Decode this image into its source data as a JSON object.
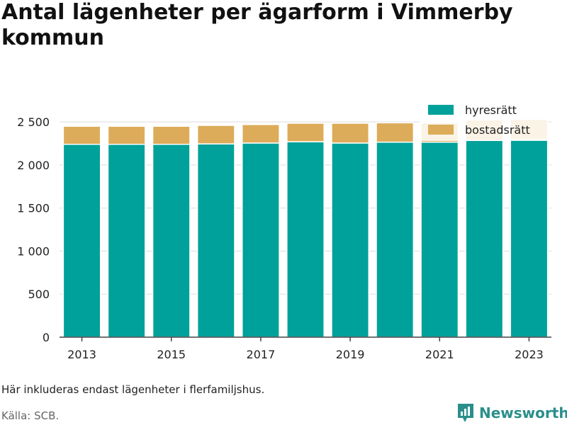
{
  "chart_data": {
    "type": "bar",
    "stacked": true,
    "title": "Antal lägenheter per ägarform i Vimmerby kommun",
    "categories": [
      2013,
      2014,
      2015,
      2016,
      2017,
      2018,
      2019,
      2020,
      2021,
      2022,
      2023
    ],
    "x_tick_labels": [
      "2013",
      "2015",
      "2017",
      "2019",
      "2021",
      "2023"
    ],
    "series": [
      {
        "name": "hyresrätt",
        "color": "#00a19a",
        "values": [
          2240,
          2240,
          2240,
          2245,
          2255,
          2270,
          2255,
          2265,
          2265,
          2285,
          2295
        ]
      },
      {
        "name": "bostadsrätt",
        "color": "#dcac5a",
        "values": [
          210,
          210,
          210,
          215,
          215,
          215,
          230,
          225,
          225,
          240,
          235
        ]
      }
    ],
    "ylim": [
      0,
      2600
    ],
    "y_ticks": [
      0,
      500,
      1000,
      1500,
      2000,
      2500
    ],
    "y_tick_labels": [
      "0",
      "500",
      "1 000",
      "1 500",
      "2 000",
      "2 500"
    ],
    "grid": true,
    "legend_position": "top-right"
  },
  "footer": {
    "note": "Här inkluderas endast lägenheter i flerfamiljshus.",
    "source": "Källa: SCB.",
    "brand": "Newsworthy"
  }
}
